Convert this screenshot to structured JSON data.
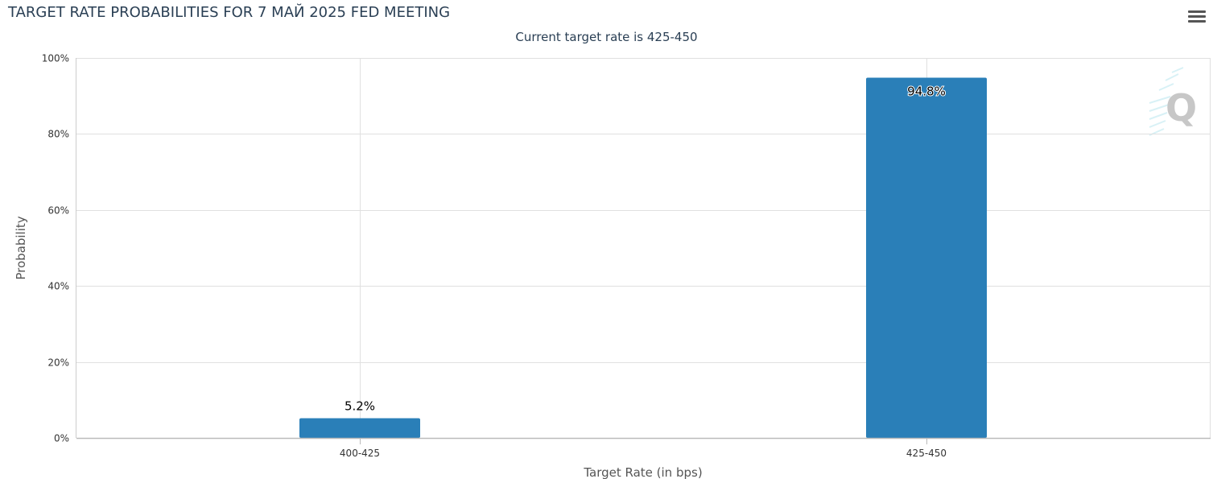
{
  "title": "TARGET RATE PROBABILITIES FOR 7 МАЙ 2025 FED MEETING",
  "subtitle": "Current target rate is 425-450",
  "menu_icon": "hamburger-menu-icon",
  "watermark_icon": "cme-q-logo-icon",
  "colors": {
    "bar": "#2a7fb8",
    "grid": "#e0e0e0",
    "title": "#2a3f54"
  },
  "chart_data": {
    "type": "bar",
    "title": "TARGET RATE PROBABILITIES FOR 7 МАЙ 2025 FED MEETING",
    "subtitle": "Current target rate is 425-450",
    "categories": [
      "400-425",
      "425-450"
    ],
    "values": [
      5.2,
      94.8
    ],
    "data_labels": [
      "5.2%",
      "94.8%"
    ],
    "xlabel": "Target Rate (in bps)",
    "ylabel": "Probability",
    "ylim": [
      0,
      100
    ],
    "yticks": [
      0,
      20,
      40,
      60,
      80,
      100
    ],
    "ytick_labels": [
      "0%",
      "20%",
      "40%",
      "60%",
      "80%",
      "100%"
    ],
    "grid": true,
    "legend": "none"
  }
}
